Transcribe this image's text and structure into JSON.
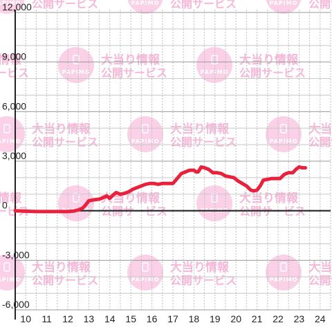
{
  "watermark": {
    "title": "大当り情報",
    "subtitle": "公開サービス",
    "logo_text": "PAPIMO",
    "icon": "phone-icon"
  },
  "chart_data": {
    "type": "line",
    "title": "",
    "xlabel": "",
    "ylabel": "",
    "xlim": [
      9.5,
      24.5
    ],
    "ylim": [
      -6000,
      12000
    ],
    "x_ticks": [
      10,
      11,
      12,
      13,
      14,
      15,
      16,
      17,
      18,
      19,
      20,
      21,
      22,
      23,
      24
    ],
    "x_tick_labels": [
      "10",
      "11",
      "12",
      "13",
      "14",
      "15",
      "16",
      "17",
      "18",
      "19",
      "20",
      "21",
      "22",
      "23",
      "24"
    ],
    "y_ticks": [
      -6000,
      -3000,
      0,
      3000,
      6000,
      9000,
      12000
    ],
    "y_tick_labels": [
      "-6,000",
      "-3,000",
      "0",
      "3,000",
      "6,000",
      "9,000",
      "12,000"
    ],
    "grid": true,
    "line_color": "#e8213c",
    "series": [
      {
        "x": [
          9.5,
          10.0,
          10.5,
          11.0,
          11.5,
          12.0,
          12.3,
          12.5,
          12.7,
          12.85,
          13.0,
          13.2,
          13.5,
          13.7,
          13.85,
          14.0,
          14.15,
          14.3,
          14.5,
          14.7,
          14.9,
          15.1,
          15.3,
          15.5,
          15.7,
          15.9,
          16.1,
          16.3,
          16.5,
          16.7,
          16.85,
          17.0,
          17.2,
          17.4,
          17.6,
          17.8,
          18.0,
          18.1,
          18.2,
          18.35,
          18.5,
          18.7,
          18.9,
          19.1,
          19.3,
          19.5,
          19.7,
          19.9,
          20.1,
          20.3,
          20.5,
          20.7,
          20.85,
          21.0,
          21.15,
          21.3,
          21.5,
          21.7,
          21.9,
          22.1,
          22.3,
          22.5,
          22.7,
          22.85,
          23.0,
          23.15,
          23.3
        ],
        "y": [
          0,
          -30,
          -50,
          -50,
          -50,
          -50,
          -20,
          50,
          150,
          350,
          600,
          650,
          700,
          800,
          900,
          750,
          950,
          1100,
          1000,
          1050,
          1150,
          1300,
          1400,
          1500,
          1600,
          1650,
          1650,
          1600,
          1650,
          1650,
          1650,
          1650,
          1950,
          2250,
          2350,
          2450,
          2450,
          2350,
          2350,
          2650,
          2600,
          2500,
          2300,
          2300,
          2250,
          2100,
          2050,
          2000,
          1800,
          1650,
          1500,
          1250,
          1200,
          1250,
          1500,
          1850,
          1900,
          1950,
          1950,
          1950,
          2200,
          2300,
          2300,
          2500,
          2650,
          2600,
          2600
        ]
      }
    ]
  }
}
